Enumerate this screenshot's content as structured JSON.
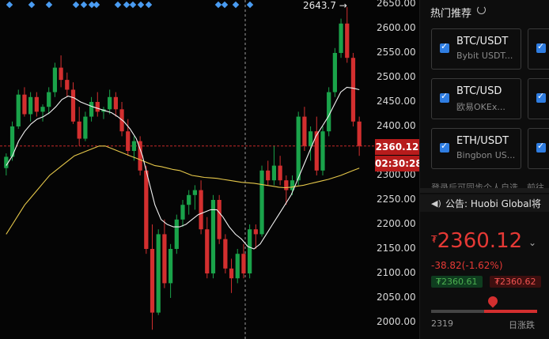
{
  "chart": {
    "y_axis_labels": [
      "2650.00",
      "2600.00",
      "2550.00",
      "2500.00",
      "2450.00",
      "2400.00",
      "2350.00",
      "2300.00",
      "2250.00",
      "2200.00",
      "2150.00",
      "2100.00",
      "2050.00",
      "2000.00"
    ],
    "high_marker": "2643.7 →",
    "current_price_tag": "2360.12",
    "countdown_tag": "02:30:28",
    "colors": {
      "up": "#1aa34a",
      "down": "#d32f2f",
      "ma_short": "#f2f2f2",
      "ma_long": "#e6c84a",
      "event_marker": "#4a9cf2"
    }
  },
  "chart_data": {
    "type": "candlestick",
    "ylim": [
      2000,
      2650
    ],
    "candles": [
      {
        "o": 2315,
        "h": 2345,
        "l": 2300,
        "c": 2338
      },
      {
        "o": 2338,
        "h": 2410,
        "l": 2330,
        "c": 2400
      },
      {
        "o": 2400,
        "h": 2475,
        "l": 2395,
        "c": 2465
      },
      {
        "o": 2465,
        "h": 2480,
        "l": 2420,
        "c": 2425
      },
      {
        "o": 2425,
        "h": 2470,
        "l": 2410,
        "c": 2460
      },
      {
        "o": 2460,
        "h": 2470,
        "l": 2420,
        "c": 2430
      },
      {
        "o": 2430,
        "h": 2445,
        "l": 2410,
        "c": 2440
      },
      {
        "o": 2440,
        "h": 2480,
        "l": 2425,
        "c": 2470
      },
      {
        "o": 2470,
        "h": 2530,
        "l": 2460,
        "c": 2520
      },
      {
        "o": 2520,
        "h": 2545,
        "l": 2480,
        "c": 2495
      },
      {
        "o": 2495,
        "h": 2510,
        "l": 2460,
        "c": 2475
      },
      {
        "o": 2475,
        "h": 2490,
        "l": 2405,
        "c": 2410
      },
      {
        "o": 2410,
        "h": 2440,
        "l": 2360,
        "c": 2375
      },
      {
        "o": 2375,
        "h": 2430,
        "l": 2370,
        "c": 2420
      },
      {
        "o": 2420,
        "h": 2460,
        "l": 2410,
        "c": 2450
      },
      {
        "o": 2450,
        "h": 2470,
        "l": 2420,
        "c": 2430
      },
      {
        "o": 2430,
        "h": 2440,
        "l": 2415,
        "c": 2435
      },
      {
        "o": 2435,
        "h": 2475,
        "l": 2425,
        "c": 2460
      },
      {
        "o": 2460,
        "h": 2470,
        "l": 2420,
        "c": 2435
      },
      {
        "o": 2435,
        "h": 2450,
        "l": 2380,
        "c": 2390
      },
      {
        "o": 2390,
        "h": 2415,
        "l": 2340,
        "c": 2350
      },
      {
        "o": 2350,
        "h": 2380,
        "l": 2330,
        "c": 2370
      },
      {
        "o": 2370,
        "h": 2380,
        "l": 2300,
        "c": 2310
      },
      {
        "o": 2310,
        "h": 2320,
        "l": 2140,
        "c": 2150
      },
      {
        "o": 2150,
        "h": 2200,
        "l": 1985,
        "c": 2020
      },
      {
        "o": 2020,
        "h": 2190,
        "l": 2015,
        "c": 2180
      },
      {
        "o": 2180,
        "h": 2210,
        "l": 2070,
        "c": 2080
      },
      {
        "o": 2080,
        "h": 2160,
        "l": 2050,
        "c": 2150
      },
      {
        "o": 2150,
        "h": 2220,
        "l": 2140,
        "c": 2210
      },
      {
        "o": 2210,
        "h": 2250,
        "l": 2195,
        "c": 2240
      },
      {
        "o": 2240,
        "h": 2270,
        "l": 2220,
        "c": 2260
      },
      {
        "o": 2260,
        "h": 2280,
        "l": 2230,
        "c": 2270
      },
      {
        "o": 2270,
        "h": 2290,
        "l": 2180,
        "c": 2190
      },
      {
        "o": 2190,
        "h": 2215,
        "l": 2090,
        "c": 2100
      },
      {
        "o": 2100,
        "h": 2260,
        "l": 2090,
        "c": 2250
      },
      {
        "o": 2250,
        "h": 2260,
        "l": 2160,
        "c": 2170
      },
      {
        "o": 2170,
        "h": 2180,
        "l": 2100,
        "c": 2110
      },
      {
        "o": 2110,
        "h": 2130,
        "l": 2060,
        "c": 2090
      },
      {
        "o": 2090,
        "h": 2150,
        "l": 2080,
        "c": 2140
      },
      {
        "o": 2140,
        "h": 2160,
        "l": 2090,
        "c": 2100
      },
      {
        "o": 2100,
        "h": 2200,
        "l": 2090,
        "c": 2190
      },
      {
        "o": 2190,
        "h": 2200,
        "l": 2150,
        "c": 2180
      },
      {
        "o": 2180,
        "h": 2320,
        "l": 2175,
        "c": 2310
      },
      {
        "o": 2310,
        "h": 2330,
        "l": 2280,
        "c": 2290
      },
      {
        "o": 2290,
        "h": 2360,
        "l": 2280,
        "c": 2320
      },
      {
        "o": 2320,
        "h": 2340,
        "l": 2280,
        "c": 2290
      },
      {
        "o": 2290,
        "h": 2300,
        "l": 2240,
        "c": 2270
      },
      {
        "o": 2270,
        "h": 2300,
        "l": 2260,
        "c": 2290
      },
      {
        "o": 2290,
        "h": 2430,
        "l": 2280,
        "c": 2420
      },
      {
        "o": 2420,
        "h": 2440,
        "l": 2350,
        "c": 2360
      },
      {
        "o": 2360,
        "h": 2400,
        "l": 2330,
        "c": 2390
      },
      {
        "o": 2390,
        "h": 2420,
        "l": 2300,
        "c": 2310
      },
      {
        "o": 2310,
        "h": 2400,
        "l": 2300,
        "c": 2390
      },
      {
        "o": 2390,
        "h": 2480,
        "l": 2380,
        "c": 2470
      },
      {
        "o": 2470,
        "h": 2560,
        "l": 2460,
        "c": 2550
      },
      {
        "o": 2550,
        "h": 2620,
        "l": 2540,
        "c": 2610
      },
      {
        "o": 2610,
        "h": 2643.7,
        "l": 2530,
        "c": 2540
      },
      {
        "o": 2540,
        "h": 2550,
        "l": 2400,
        "c": 2410
      },
      {
        "o": 2410,
        "h": 2420,
        "l": 2340,
        "c": 2360.12
      }
    ],
    "ma_short": [
      2320,
      2340,
      2370,
      2390,
      2405,
      2415,
      2420,
      2428,
      2440,
      2455,
      2462,
      2458,
      2450,
      2445,
      2440,
      2436,
      2432,
      2428,
      2420,
      2410,
      2395,
      2375,
      2340,
      2290,
      2240,
      2210,
      2200,
      2195,
      2195,
      2200,
      2210,
      2220,
      2225,
      2230,
      2230,
      2215,
      2195,
      2180,
      2170,
      2155,
      2150,
      2160,
      2180,
      2200,
      2220,
      2240,
      2260,
      2290,
      2320,
      2350,
      2380,
      2400,
      2420,
      2445,
      2470,
      2480,
      2478,
      2475
    ],
    "ma_long": [
      2180,
      2200,
      2220,
      2240,
      2255,
      2270,
      2285,
      2300,
      2310,
      2320,
      2330,
      2340,
      2345,
      2350,
      2355,
      2360,
      2360,
      2355,
      2350,
      2345,
      2340,
      2335,
      2330,
      2325,
      2320,
      2318,
      2315,
      2312,
      2310,
      2305,
      2300,
      2298,
      2296,
      2295,
      2294,
      2292,
      2290,
      2288,
      2286,
      2285,
      2284,
      2282,
      2280,
      2278,
      2276,
      2275,
      2276,
      2278,
      2280,
      2283,
      2286,
      2289,
      2292,
      2296,
      2300,
      2305,
      2310,
      2315
    ],
    "current_price": 2360.12
  },
  "sidebar": {
    "title": "热门推荐",
    "cards": [
      {
        "pair": "BTC/USDT",
        "exchange": "Bybit USDT..."
      },
      {
        "pair": "BTC/USD",
        "exchange": "欧易OKEx..."
      },
      {
        "pair": "ETH/USDT",
        "exchange": "Bingbon US..."
      }
    ],
    "cut_text": "登录后可同步个人自选，前往",
    "notice_label": "公告:",
    "notice_text": "Huobi Global将",
    "price_symbol": "₮",
    "price": "2360.12",
    "change": "-38.82(-1.62%)",
    "bid": "₮2360.61",
    "ask": "₮2360.62",
    "range_low": "2319",
    "range_label": "日涨跌",
    "range_fraction": 0.5
  }
}
